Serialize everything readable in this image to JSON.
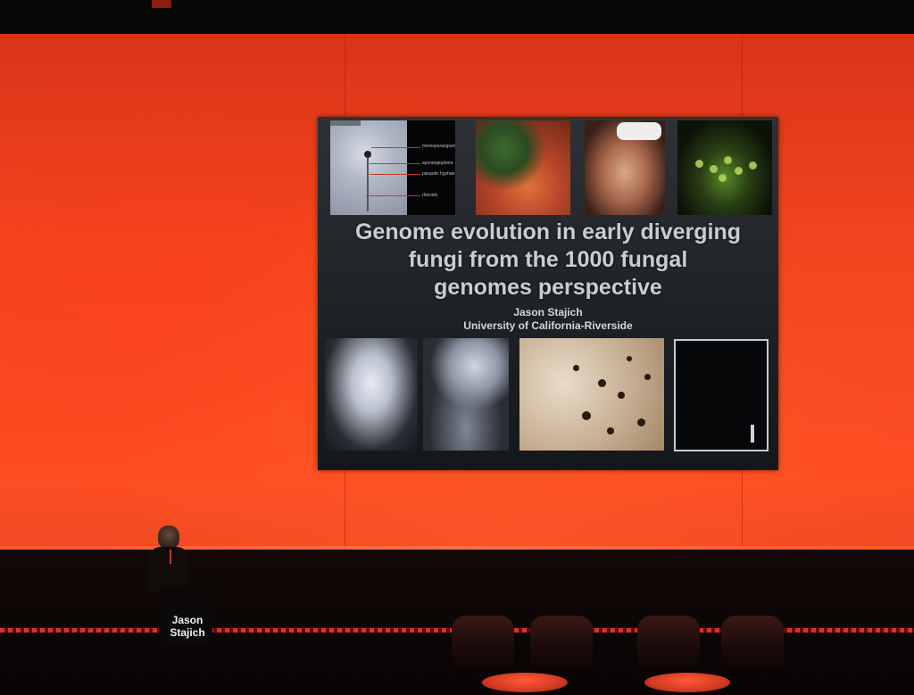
{
  "slide": {
    "title_lines": [
      "Genome evolution in early diverging",
      "fungi from the 1000 fungal",
      "genomes perspective"
    ],
    "author": "Jason Stajich",
    "affiliation": "University of California-Riverside",
    "diagram_labels": [
      "merosporangium",
      "sporangiophore",
      "parasitic hyphae",
      "rhizoids"
    ]
  },
  "podium": {
    "name_lines": [
      "Jason",
      "Stajich"
    ]
  },
  "colors": {
    "stage_wall": "#f2441e",
    "slide_background": "#1d2124",
    "title_text": "#c9ccd0"
  }
}
